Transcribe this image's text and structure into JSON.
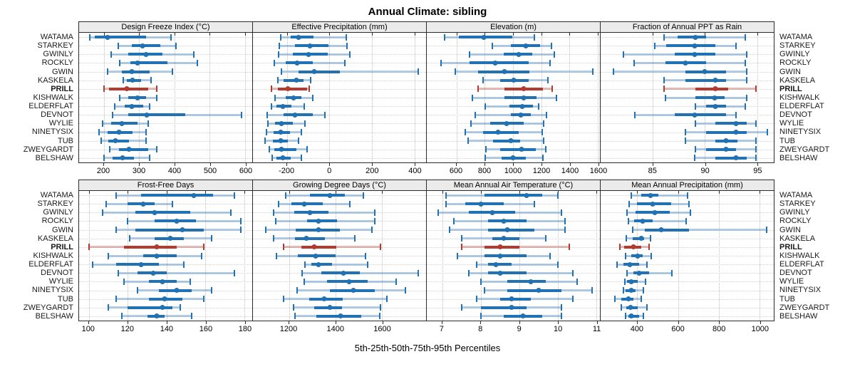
{
  "title": "Annual Climate: sibling",
  "caption": "5th-25th-50th-75th-95th Percentiles",
  "stations": [
    "WATAMA",
    "STARKEY",
    "GWINLY",
    "ROCKLY",
    "GWIN",
    "KASKELA",
    "PRILL",
    "KISHWALK",
    "ELDERFLAT",
    "DEVNOT",
    "WYLIE",
    "NINETYSIX",
    "TUB",
    "ZWEYGARDT",
    "BELSHAW"
  ],
  "highlight_station": "PRILL",
  "colors": {
    "series": "#2171b5",
    "series_band": "rgba(33,113,181,0.35)",
    "highlight": "#b23a2e",
    "highlight_band": "rgba(178,58,46,0.35)",
    "strip_bg": "#ebebeb",
    "grid": "#bfbfbf",
    "row_guide": "#d2d2d2"
  },
  "chart_data": [
    {
      "type": "dot-interval",
      "title": "Design Freeze Index (°C)",
      "xlim": [
        130,
        620
      ],
      "ticks": [
        200,
        300,
        400,
        500,
        600
      ],
      "percentiles": [
        "5th",
        "25th",
        "50th",
        "75th",
        "95th"
      ],
      "values": [
        [
          160,
          175,
          210,
          320,
          390
        ],
        [
          240,
          280,
          310,
          360,
          405
        ],
        [
          220,
          270,
          320,
          365,
          455
        ],
        [
          245,
          275,
          295,
          380,
          465
        ],
        [
          210,
          250,
          280,
          330,
          395
        ],
        [
          255,
          265,
          282,
          305,
          333
        ],
        [
          200,
          215,
          265,
          325,
          350
        ],
        [
          245,
          270,
          295,
          320,
          350
        ],
        [
          230,
          260,
          280,
          312,
          330
        ],
        [
          225,
          270,
          322,
          430,
          590
        ],
        [
          197,
          220,
          250,
          295,
          325
        ],
        [
          187,
          210,
          242,
          282,
          320
        ],
        [
          192,
          212,
          232,
          272,
          320
        ],
        [
          217,
          242,
          272,
          325,
          350
        ],
        [
          200,
          225,
          252,
          285,
          330
        ]
      ]
    },
    {
      "type": "dot-interval",
      "title": "Effective Precipitation (mm)",
      "xlim": [
        -360,
        455
      ],
      "ticks": [
        -200,
        0,
        200,
        400
      ],
      "percentiles": [
        "5th",
        "25th",
        "50th",
        "75th",
        "95th"
      ],
      "values": [
        [
          -230,
          -183,
          -144,
          -74,
          80
        ],
        [
          -237,
          -162,
          -91,
          -3,
          83
        ],
        [
          -239,
          -172,
          -100,
          -8,
          97
        ],
        [
          -258,
          -205,
          -152,
          -78,
          72
        ],
        [
          -225,
          -144,
          -72,
          48,
          417
        ],
        [
          -244,
          -217,
          -155,
          -122,
          -89
        ],
        [
          -272,
          -244,
          -194,
          -105,
          -94
        ],
        [
          -255,
          -205,
          -170,
          -133,
          -78
        ],
        [
          -274,
          -250,
          -219,
          -178,
          -117
        ],
        [
          -292,
          -217,
          -163,
          -78,
          -22
        ],
        [
          -289,
          -255,
          -225,
          -172,
          -114
        ],
        [
          -297,
          -263,
          -230,
          -185,
          -133
        ],
        [
          -303,
          -267,
          -228,
          -194,
          -144
        ],
        [
          -283,
          -259,
          -225,
          -155,
          -105
        ],
        [
          -270,
          -250,
          -219,
          -181,
          -133
        ]
      ]
    },
    {
      "type": "dot-interval",
      "title": "Elevation (m)",
      "xlim": [
        390,
        1615
      ],
      "ticks": [
        600,
        800,
        1000,
        1200,
        1400,
        1600
      ],
      "percentiles": [
        "5th",
        "25th",
        "50th",
        "75th",
        "95th"
      ],
      "values": [
        [
          515,
          615,
          795,
          995,
          1150
        ],
        [
          855,
          985,
          1090,
          1190,
          1270
        ],
        [
          690,
          935,
          1040,
          1135,
          1290
        ],
        [
          490,
          690,
          875,
          1110,
          1260
        ],
        [
          590,
          755,
          940,
          1115,
          1565
        ],
        [
          790,
          910,
          1005,
          1110,
          1245
        ],
        [
          755,
          940,
          1075,
          1210,
          1275
        ],
        [
          715,
          940,
          1078,
          1165,
          1305
        ],
        [
          805,
          975,
          1065,
          1140,
          1180
        ],
        [
          735,
          985,
          1055,
          1125,
          1235
        ],
        [
          705,
          840,
          955,
          1075,
          1215
        ],
        [
          660,
          790,
          895,
          1040,
          1205
        ],
        [
          680,
          860,
          985,
          1050,
          1215
        ],
        [
          810,
          910,
          1060,
          1160,
          1230
        ],
        [
          805,
          920,
          1000,
          1090,
          1210
        ]
      ]
    },
    {
      "type": "dot-interval",
      "title": "Fraction of Annual PPT as Rain",
      "xlim": [
        80,
        96.6
      ],
      "ticks": [
        85,
        90,
        95
      ],
      "percentiles": [
        "5th",
        "25th",
        "50th",
        "75th",
        "95th"
      ],
      "values": [
        [
          86.1,
          87.4,
          89.1,
          90.1,
          93.9
        ],
        [
          85.2,
          86.3,
          89,
          91,
          93
        ],
        [
          82.2,
          87.1,
          89,
          91,
          94
        ],
        [
          83.2,
          86.2,
          88.1,
          90.1,
          93.9
        ],
        [
          81.2,
          88.1,
          90,
          92,
          94
        ],
        [
          86.1,
          88.1,
          91,
          92,
          94
        ],
        [
          86.1,
          89.1,
          91,
          92.2,
          94.9
        ],
        [
          86.2,
          89.1,
          90.9,
          91.9,
          94
        ],
        [
          89.1,
          90.1,
          91,
          92,
          93.9
        ],
        [
          83.3,
          87.1,
          89,
          92,
          93
        ],
        [
          89.1,
          91,
          93,
          94,
          94.9
        ],
        [
          88.1,
          90.1,
          93,
          94,
          96
        ],
        [
          88.1,
          91,
          92,
          93.1,
          94.9
        ],
        [
          89.1,
          90.1,
          92,
          93,
          94.9
        ],
        [
          89,
          91,
          93,
          94,
          94.9
        ]
      ]
    },
    {
      "type": "dot-interval",
      "title": "Frost-Free Days",
      "xlim": [
        95,
        184
      ],
      "ticks": [
        100,
        120,
        140,
        160,
        180
      ],
      "percentiles": [
        "5th",
        "25th",
        "50th",
        "75th",
        "95th"
      ],
      "values": [
        [
          114,
          127,
          154,
          164,
          175
        ],
        [
          109,
          120,
          128,
          134,
          143
        ],
        [
          107,
          124,
          134,
          152,
          173
        ],
        [
          120,
          134,
          145,
          155,
          178
        ],
        [
          114,
          124,
          148,
          159,
          178
        ],
        [
          121,
          134,
          142,
          149,
          163
        ],
        [
          100,
          118,
          135,
          145,
          159
        ],
        [
          110,
          128,
          135,
          145,
          158
        ],
        [
          102,
          114,
          127,
          136,
          149
        ],
        [
          115,
          125,
          133,
          140,
          175
        ],
        [
          118,
          131,
          138,
          145,
          152
        ],
        [
          125,
          136,
          145,
          153,
          163
        ],
        [
          114,
          131,
          139,
          148,
          159
        ],
        [
          110,
          120,
          138,
          143,
          147
        ],
        [
          117,
          130,
          135,
          139,
          153
        ]
      ]
    },
    {
      "type": "dot-interval",
      "title": "Growing Degree Days (°C)",
      "xlim": [
        1045,
        1790
      ],
      "ticks": [
        1200,
        1400,
        1600
      ],
      "percentiles": [
        "5th",
        "25th",
        "50th",
        "75th",
        "95th"
      ],
      "values": [
        [
          1185,
          1290,
          1375,
          1440,
          1520
        ],
        [
          1155,
          1210,
          1267,
          1345,
          1463
        ],
        [
          1135,
          1223,
          1291,
          1370,
          1570
        ],
        [
          1142,
          1277,
          1327,
          1408,
          1570
        ],
        [
          1100,
          1230,
          1327,
          1418,
          1557
        ],
        [
          1135,
          1226,
          1274,
          1355,
          1483
        ],
        [
          1178,
          1254,
          1310,
          1405,
          1595
        ],
        [
          1145,
          1238,
          1314,
          1402,
          1530
        ],
        [
          1270,
          1297,
          1327,
          1385,
          1540
        ],
        [
          1257,
          1340,
          1435,
          1505,
          1755
        ],
        [
          1267,
          1365,
          1460,
          1540,
          1660
        ],
        [
          1236,
          1375,
          1476,
          1570,
          1700
        ],
        [
          1176,
          1287,
          1352,
          1432,
          1620
        ],
        [
          1220,
          1310,
          1375,
          1428,
          1595
        ],
        [
          1226,
          1317,
          1422,
          1510,
          1590
        ]
      ]
    },
    {
      "type": "dot-interval",
      "title": "Mean Annual Air Temperature (°C)",
      "xlim": [
        6.6,
        11.1
      ],
      "ticks": [
        7,
        8,
        9,
        10,
        11
      ],
      "percentiles": [
        "5th",
        "25th",
        "50th",
        "75th",
        "95th"
      ],
      "values": [
        [
          7.1,
          8.1,
          9.2,
          9.6,
          10
        ],
        [
          7.1,
          7.6,
          8,
          8.6,
          9.4
        ],
        [
          6.9,
          7.7,
          8.3,
          8.9,
          10.1
        ],
        [
          7.3,
          8.2,
          8.6,
          9.2,
          10.2
        ],
        [
          7.2,
          8.2,
          8.7,
          9.4,
          10.2
        ],
        [
          7.5,
          8.3,
          8.6,
          9,
          9.7
        ],
        [
          7.5,
          8.1,
          8.5,
          9,
          10.3
        ],
        [
          7.4,
          8.1,
          8.5,
          9.2,
          9.8
        ],
        [
          7.9,
          8.2,
          8.4,
          8.8,
          10
        ],
        [
          7.7,
          8.2,
          8.5,
          9.2,
          10.4
        ],
        [
          8,
          8.7,
          9.3,
          9.7,
          10.5
        ],
        [
          8.1,
          8.7,
          9.5,
          10.1,
          10.9
        ],
        [
          7.9,
          8.5,
          8.8,
          9.3,
          10.4
        ],
        [
          7.5,
          8,
          8.8,
          9.2,
          10.1
        ],
        [
          8,
          8.6,
          9.1,
          9.6,
          10.1
        ]
      ]
    },
    {
      "type": "dot-interval",
      "title": "Mean Annual Precipitation (mm)",
      "xlim": [
        220,
        1070
      ],
      "ticks": [
        400,
        600,
        800,
        1000
      ],
      "percentiles": [
        "5th",
        "25th",
        "50th",
        "75th",
        "95th"
      ],
      "values": [
        [
          370,
          420,
          465,
          505,
          645
        ],
        [
          360,
          400,
          477,
          565,
          655
        ],
        [
          350,
          392,
          486,
          560,
          660
        ],
        [
          357,
          385,
          426,
          477,
          640
        ],
        [
          377,
          438,
          518,
          653,
          1035
        ],
        [
          346,
          377,
          420,
          432,
          466
        ],
        [
          316,
          334,
          380,
          420,
          457
        ],
        [
          343,
          369,
          403,
          426,
          469
        ],
        [
          300,
          331,
          362,
          408,
          446
        ],
        [
          351,
          380,
          408,
          457,
          570
        ],
        [
          339,
          351,
          369,
          403,
          440
        ],
        [
          331,
          343,
          369,
          392,
          431
        ],
        [
          289,
          320,
          357,
          380,
          420
        ],
        [
          323,
          346,
          366,
          403,
          446
        ],
        [
          343,
          357,
          369,
          408,
          431
        ]
      ]
    }
  ]
}
